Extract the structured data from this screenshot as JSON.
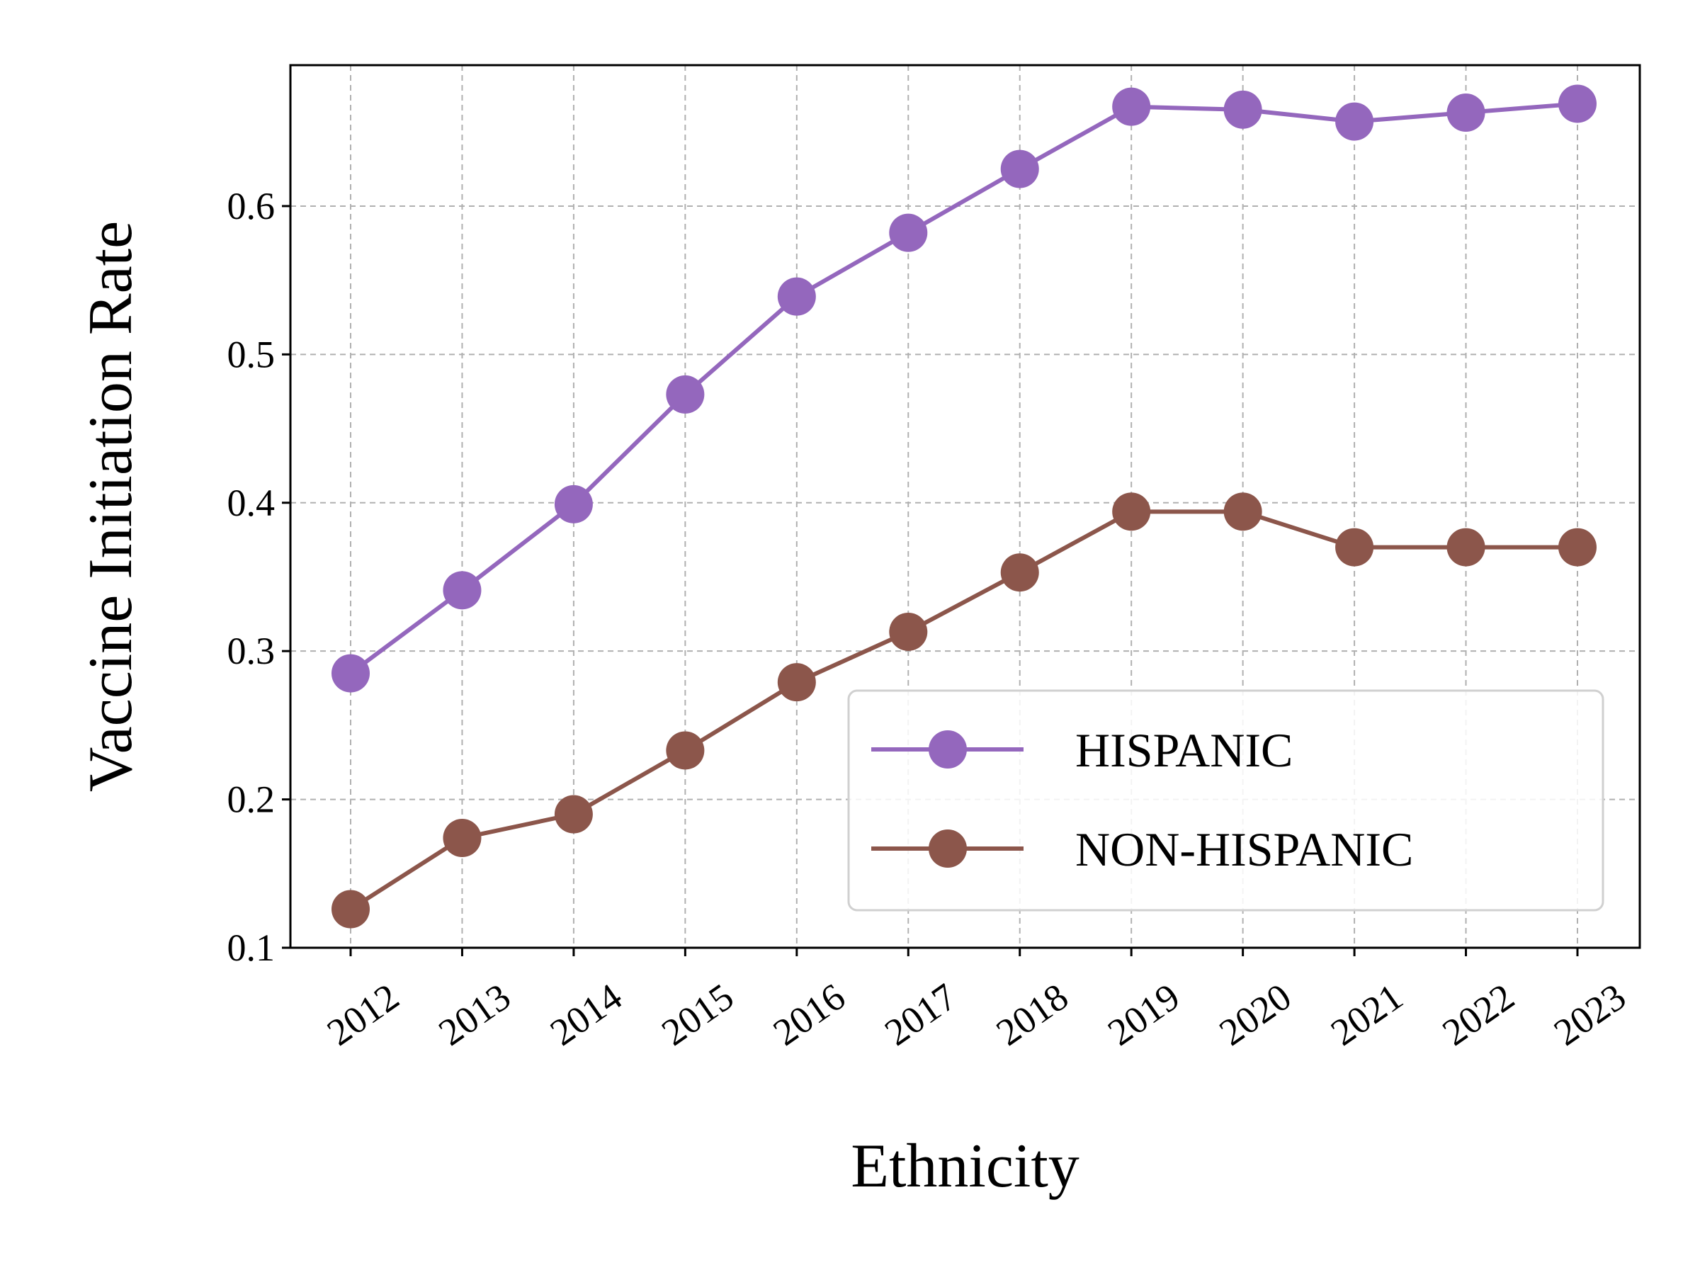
{
  "chart_data": {
    "type": "line",
    "xlabel": "Ethnicity",
    "ylabel": "Vaccine Initiation Rate",
    "categories": [
      "2012",
      "2013",
      "2014",
      "2015",
      "2016",
      "2017",
      "2018",
      "2019",
      "2020",
      "2021",
      "2022",
      "2023"
    ],
    "yticks": [
      "0.1",
      "0.2",
      "0.3",
      "0.4",
      "0.5",
      "0.6"
    ],
    "ylim": [
      0.1,
      0.695
    ],
    "grid": true,
    "legend_position": "lower-right",
    "series": [
      {
        "name": "HISPANIC",
        "color": "#9467bd",
        "values": [
          0.285,
          0.341,
          0.399,
          0.473,
          0.539,
          0.582,
          0.625,
          0.667,
          0.665,
          0.657,
          0.663,
          0.669
        ]
      },
      {
        "name": "NON-HISPANIC",
        "color": "#8c564b",
        "values": [
          0.126,
          0.174,
          0.19,
          0.233,
          0.279,
          0.313,
          0.353,
          0.394,
          0.394,
          0.37,
          0.37,
          0.37
        ]
      }
    ]
  }
}
